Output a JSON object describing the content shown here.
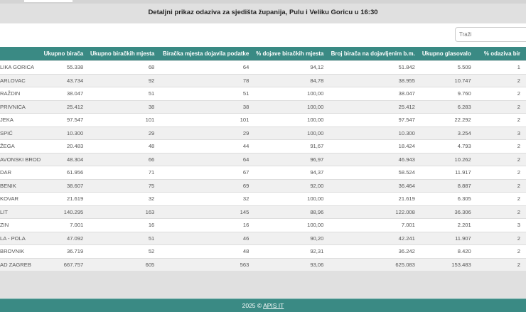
{
  "title": "Detaljni prikaz odaziva za sjedišta županija, Pulu i Veliku Goricu u 16:30",
  "search": {
    "placeholder": "Traži"
  },
  "table": {
    "headers": [
      "",
      "Ukupno birača",
      "Ukupno biračkih mjesta",
      "Biračka mjesta dojavila podatke",
      "% dojave biračkih mjesta",
      "Broj birača na dojavljenim b.m.",
      "Ukupno glasovalo",
      "% odaziva bir"
    ],
    "rows": [
      [
        "LIKA GORICA",
        "55.338",
        "68",
        "64",
        "94,12",
        "51.842",
        "5.509",
        "1"
      ],
      [
        "ARLOVAC",
        "43.734",
        "92",
        "78",
        "84,78",
        "38.955",
        "10.747",
        "2"
      ],
      [
        "RAŽDIN",
        "38.047",
        "51",
        "51",
        "100,00",
        "38.047",
        "9.760",
        "2"
      ],
      [
        "PRIVNICA",
        "25.412",
        "38",
        "38",
        "100,00",
        "25.412",
        "6.283",
        "2"
      ],
      [
        "JEKA",
        "97.547",
        "101",
        "101",
        "100,00",
        "97.547",
        "22.292",
        "2"
      ],
      [
        "SPIĆ",
        "10.300",
        "29",
        "29",
        "100,00",
        "10.300",
        "3.254",
        "3"
      ],
      [
        "ŽEGA",
        "20.483",
        "48",
        "44",
        "91,67",
        "18.424",
        "4.793",
        "2"
      ],
      [
        "AVONSKI BROD",
        "48.304",
        "66",
        "64",
        "96,97",
        "46.943",
        "10.262",
        "2"
      ],
      [
        "DAR",
        "61.956",
        "71",
        "67",
        "94,37",
        "58.524",
        "11.917",
        "2"
      ],
      [
        "BENIK",
        "38.607",
        "75",
        "69",
        "92,00",
        "36.464",
        "8.887",
        "2"
      ],
      [
        "KOVAR",
        "21.619",
        "32",
        "32",
        "100,00",
        "21.619",
        "6.305",
        "2"
      ],
      [
        "LIT",
        "140.295",
        "163",
        "145",
        "88,96",
        "122.008",
        "36.306",
        "2"
      ],
      [
        "ZIN",
        "7.001",
        "16",
        "16",
        "100,00",
        "7.001",
        "2.201",
        "3"
      ],
      [
        "LA - POLA",
        "47.092",
        "51",
        "46",
        "90,20",
        "42.241",
        "11.907",
        "2"
      ],
      [
        "BROVNIK",
        "36.719",
        "52",
        "48",
        "92,31",
        "36.242",
        "8.420",
        "2"
      ],
      [
        "AD ZAGREB",
        "667.757",
        "605",
        "563",
        "93,06",
        "625.083",
        "153.483",
        "2"
      ]
    ]
  },
  "footer": {
    "year": "2025 ©",
    "link": "APIS IT"
  },
  "colors": {
    "accent": "#3a8a84"
  }
}
